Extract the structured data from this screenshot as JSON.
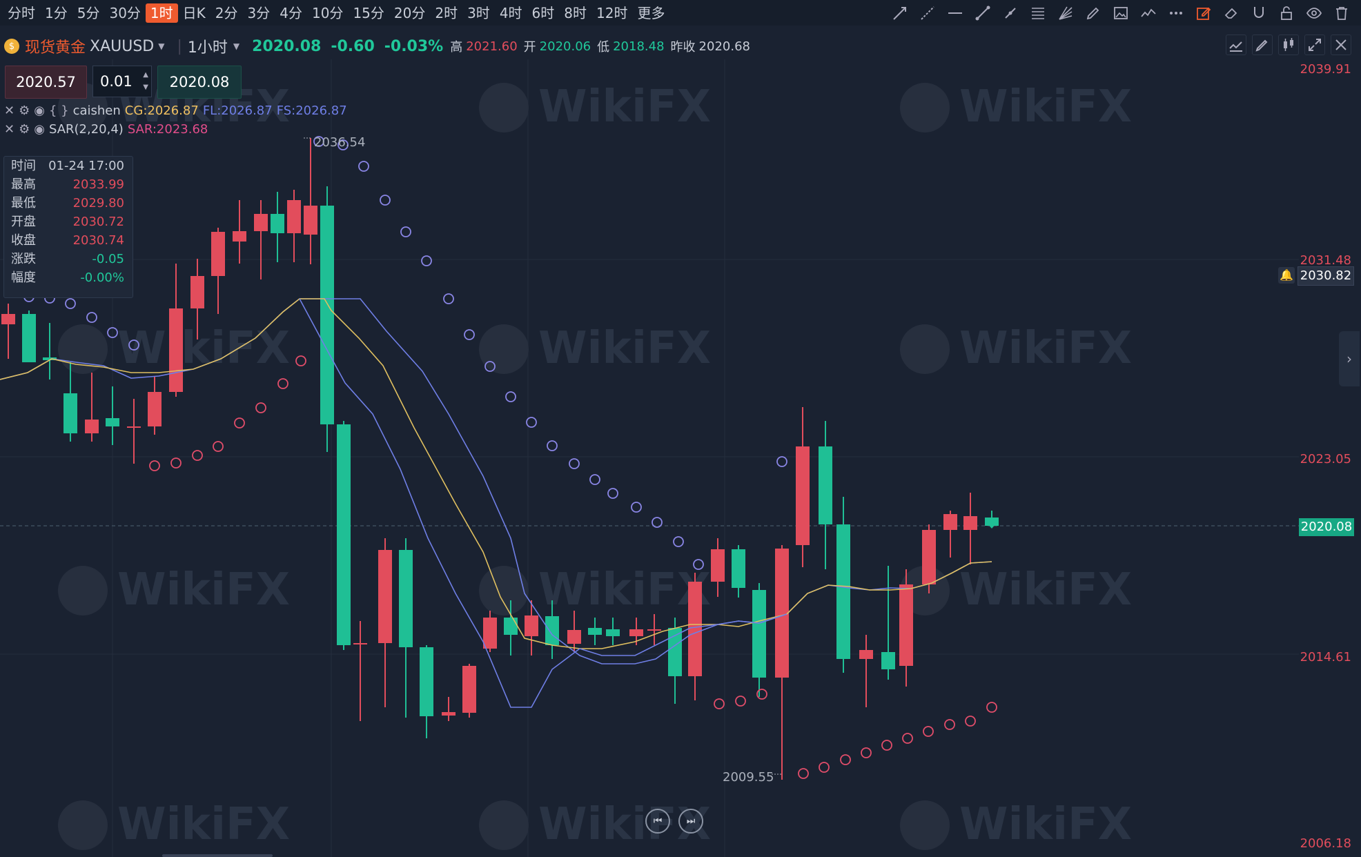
{
  "timeframes": [
    "分时",
    "1分",
    "5分",
    "30分",
    "1时",
    "日K",
    "2分",
    "3分",
    "4分",
    "10分",
    "15分",
    "20分",
    "2时",
    "3时",
    "4时",
    "6时",
    "8时",
    "12时",
    "更多"
  ],
  "active_timeframe_index": 4,
  "symbol": {
    "name": "现货黄金",
    "code": "XAUUSD",
    "period": "1小时",
    "price": "2020.08",
    "change": "-0.60",
    "change_pct": "-0.03%",
    "high_label": "高",
    "high": "2021.60",
    "open_label": "开",
    "open": "2020.06",
    "low_label": "低",
    "low": "2018.48",
    "prev_label": "昨收",
    "prev": "2020.68"
  },
  "order": {
    "sell": "2020.57",
    "qty": "0.01",
    "buy": "2020.08"
  },
  "indicators": [
    {
      "name": "caishen",
      "label": "{ }",
      "values": [
        {
          "k": "CG:2026.87",
          "color": "#f0c060"
        },
        {
          "k": "FL:2026.87",
          "color": "#6f7fe6"
        },
        {
          "k": "FS:2026.87",
          "color": "#6f7fe6"
        }
      ]
    },
    {
      "name": "SAR(2,20,4)",
      "label": "",
      "values": [
        {
          "k": "SAR:2023.68",
          "color": "#e24d8a"
        }
      ]
    }
  ],
  "info": {
    "rows": [
      {
        "k": "时间",
        "v": "01-24 17:00",
        "c": "#c7ccd6"
      },
      {
        "k": "最高",
        "v": "2033.99",
        "c": "#e24d5c"
      },
      {
        "k": "最低",
        "v": "2029.80",
        "c": "#e24d5c"
      },
      {
        "k": "开盘",
        "v": "2030.72",
        "c": "#e24d5c"
      },
      {
        "k": "收盘",
        "v": "2030.74",
        "c": "#e24d5c"
      },
      {
        "k": "涨跌",
        "v": "-0.05",
        "c": "#20c89a"
      },
      {
        "k": "幅度",
        "v": "-0.00%",
        "c": "#20c89a"
      }
    ]
  },
  "axis_labels": [
    "2039.91",
    "2031.48",
    "2023.05",
    "2014.61",
    "2006.18"
  ],
  "crosshair_price": "2030.82",
  "last_price_tag": "2020.08",
  "annotations": {
    "high": "2036.54",
    "low": "2009.55"
  },
  "watermark": "WikiFX",
  "colors": {
    "up": "#e24d5c",
    "down": "#1fbf95",
    "bg": "#1a2231",
    "accent": "#ef5b2f"
  }
}
